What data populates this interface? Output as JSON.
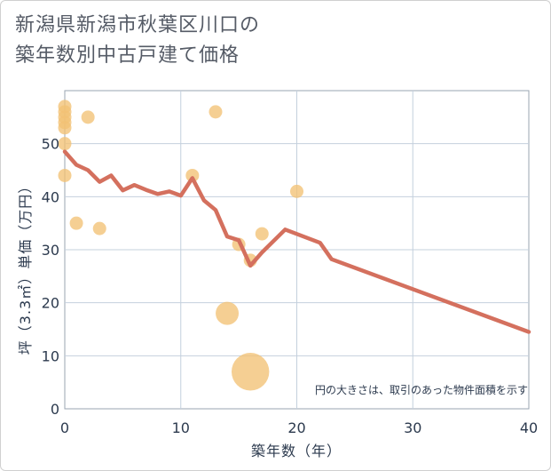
{
  "chart_data": {
    "type": "scatter",
    "title": [
      "新潟県新潟市秋葉区川口の",
      "築年数別中古戸建て価格"
    ],
    "xlabel": "築年数（年）",
    "ylabel": "坪（3.3㎡）単価（万円）",
    "xlim": [
      0,
      40
    ],
    "ylim": [
      0,
      60
    ],
    "xticks": [
      0,
      10,
      20,
      30,
      40
    ],
    "yticks": [
      0,
      10,
      20,
      30,
      40,
      50
    ],
    "grid": true,
    "note": "円の大きさは、取引のあった物件面積を示す",
    "scatter_color": "#f2c274",
    "line_color": "#d4705e",
    "points": [
      {
        "x": 0,
        "y": 57,
        "size": 1
      },
      {
        "x": 0,
        "y": 56,
        "size": 1
      },
      {
        "x": 0,
        "y": 55,
        "size": 1
      },
      {
        "x": 0,
        "y": 54,
        "size": 1
      },
      {
        "x": 0,
        "y": 53,
        "size": 1
      },
      {
        "x": 0,
        "y": 50,
        "size": 1
      },
      {
        "x": 0,
        "y": 44,
        "size": 1
      },
      {
        "x": 1,
        "y": 35,
        "size": 1
      },
      {
        "x": 2,
        "y": 55,
        "size": 1
      },
      {
        "x": 3,
        "y": 34,
        "size": 1
      },
      {
        "x": 11,
        "y": 44,
        "size": 1
      },
      {
        "x": 13,
        "y": 56,
        "size": 1
      },
      {
        "x": 14,
        "y": 18,
        "size": 3
      },
      {
        "x": 15,
        "y": 31,
        "size": 1
      },
      {
        "x": 16,
        "y": 28,
        "size": 1
      },
      {
        "x": 16,
        "y": 7,
        "size": 8
      },
      {
        "x": 17,
        "y": 33,
        "size": 1
      },
      {
        "x": 20,
        "y": 41,
        "size": 1
      }
    ],
    "trend": [
      {
        "x": 0,
        "y": 48.5
      },
      {
        "x": 1,
        "y": 46
      },
      {
        "x": 2,
        "y": 45
      },
      {
        "x": 3,
        "y": 42.8
      },
      {
        "x": 4,
        "y": 44
      },
      {
        "x": 5,
        "y": 41.2
      },
      {
        "x": 6,
        "y": 42.2
      },
      {
        "x": 7,
        "y": 41.3
      },
      {
        "x": 8,
        "y": 40.5
      },
      {
        "x": 9,
        "y": 41
      },
      {
        "x": 10,
        "y": 40.2
      },
      {
        "x": 11,
        "y": 43.5
      },
      {
        "x": 12,
        "y": 39.3
      },
      {
        "x": 13,
        "y": 37.5
      },
      {
        "x": 14,
        "y": 32.5
      },
      {
        "x": 15,
        "y": 31.8
      },
      {
        "x": 16,
        "y": 27
      },
      {
        "x": 17,
        "y": 29.5
      },
      {
        "x": 19,
        "y": 33.8
      },
      {
        "x": 22,
        "y": 31.3
      },
      {
        "x": 23,
        "y": 28.2
      },
      {
        "x": 40,
        "y": 14.5
      }
    ]
  }
}
